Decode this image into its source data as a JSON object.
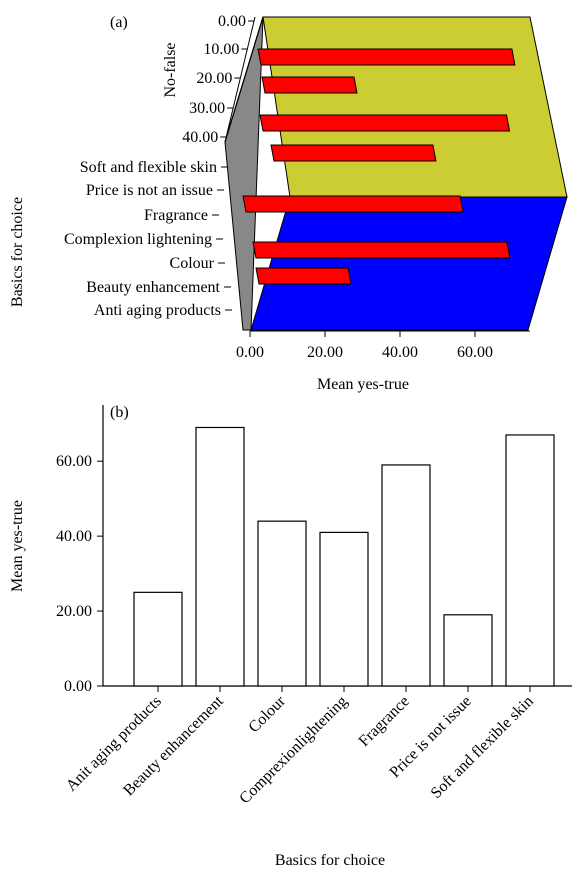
{
  "colors": {
    "bar3d": "#ff0000",
    "floor": "#0000ff",
    "backwall": "#cccc33",
    "sidewall": "#888888",
    "bar2d_fill": "#ffffff",
    "stroke": "#000000"
  },
  "chart_data": [
    {
      "type": "bar",
      "panel_label": "(a)",
      "xlabel": "Mean yes-true",
      "ylabel": "Basics for choice",
      "zlabel": "No-false",
      "x_ticks": [
        "0.00",
        "20.00",
        "40.00",
        "60.00"
      ],
      "xlim": [
        0,
        70
      ],
      "z_ticks": [
        "0.00",
        "10.00",
        "20.00",
        "30.00",
        "40.00"
      ],
      "categories": [
        "Soft and flexible skin",
        "Price is not an issue",
        "Fragrance",
        "Complexion lightening",
        "Colour",
        "Beauty enhancement",
        "Anti aging products"
      ],
      "series": [
        {
          "values": [
            67,
            19,
            59,
            41,
            44,
            69,
            25
          ]
        }
      ]
    },
    {
      "type": "bar",
      "panel_label": "(b)",
      "xlabel": "Basics for choice",
      "ylabel": "Mean yes-true",
      "ylim": [
        0,
        75
      ],
      "y_ticks": [
        "0.00",
        "20.00",
        "40.00",
        "60.00"
      ],
      "categories": [
        "Anit aging products",
        "Beauty enhancement",
        "Colour",
        "Comprexionlightening",
        "Fragrance",
        "Price is not issue",
        "Soft and flexible skin"
      ],
      "values": [
        25,
        69,
        44,
        41,
        59,
        19,
        67
      ]
    }
  ]
}
